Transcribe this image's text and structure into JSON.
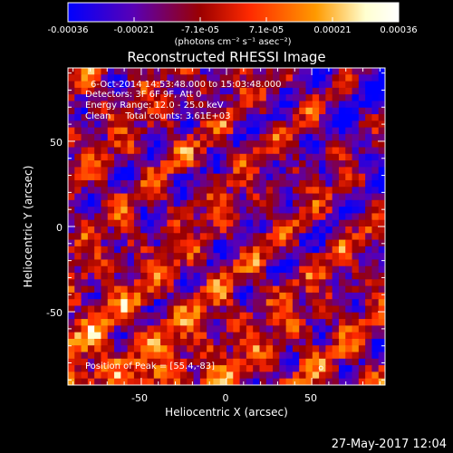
{
  "colorbar": {
    "ticks": [
      "-0.00036",
      "-0.00021",
      "-7.1e-05",
      "7.1e-05",
      "0.00021",
      "0.00036"
    ],
    "unit_label": "(photons cm⁻² s⁻¹ asec⁻²)",
    "colors": [
      "#0000ff",
      "#5a00b4",
      "#9b0000",
      "#ff2a00",
      "#ff9a00",
      "#ffffd0",
      "#ffffff"
    ]
  },
  "chart_data": {
    "type": "heatmap",
    "title": "Reconstructed RHESSI Image",
    "xlabel": "Heliocentric X (arcsec)",
    "ylabel": "Heliocentric Y (arcsec)",
    "xlim": [
      -93,
      93
    ],
    "ylim": [
      -93,
      93
    ],
    "x_ticks": [
      -50,
      0,
      50
    ],
    "y_ticks": [
      50,
      0,
      -50
    ],
    "colorbar_range": [
      -0.00036,
      0.00036
    ],
    "peak": [
      55.4,
      -83
    ],
    "annotations": {
      "line1": "6-Oct-2014 14:53:48.000 to 15:03:48.000",
      "line2": "Detectors: 3F 6F 9F, Att 0",
      "line3": "Energy Range: 12.0 - 25.0 keV",
      "line4": "Clean     Total counts: 3.61E+03",
      "peak_label": "Position of Peak = [55.4,-83]"
    }
  },
  "footer": {
    "timestamp": "27-May-2017 12:04"
  }
}
